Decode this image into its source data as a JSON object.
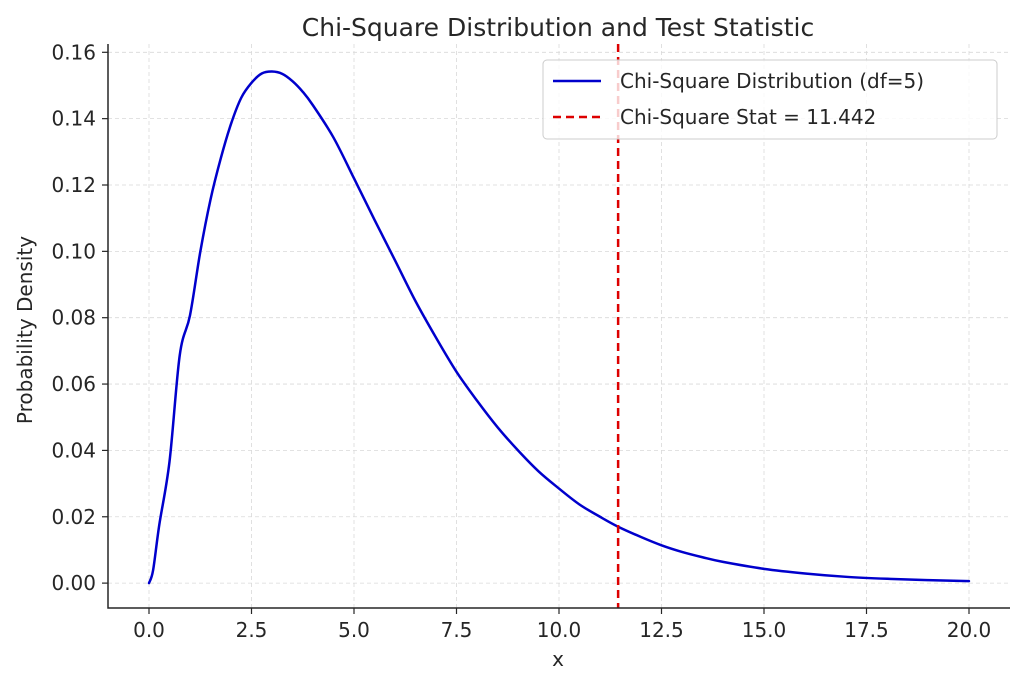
{
  "chart_data": {
    "type": "line",
    "title": "Chi-Square Distribution and Test Statistic",
    "xlabel": "x",
    "ylabel": "Probability Density",
    "xlim": [
      -1.0,
      21.0
    ],
    "ylim": [
      -0.0075,
      0.1625
    ],
    "xticks": [
      0.0,
      2.5,
      5.0,
      7.5,
      10.0,
      12.5,
      15.0,
      17.5,
      20.0
    ],
    "xtick_labels": [
      "0.0",
      "2.5",
      "5.0",
      "7.5",
      "10.0",
      "12.5",
      "15.0",
      "17.5",
      "20.0"
    ],
    "yticks": [
      0.0,
      0.02,
      0.04,
      0.06,
      0.08,
      0.1,
      0.12,
      0.14,
      0.16
    ],
    "ytick_labels": [
      "0.00",
      "0.02",
      "0.04",
      "0.06",
      "0.08",
      "0.10",
      "0.12",
      "0.14",
      "0.16"
    ],
    "grid": true,
    "legend": {
      "placement": "top-right"
    },
    "series": [
      {
        "name": "Chi-Square Distribution (df=5)",
        "color": "#0000cc",
        "style": "solid",
        "x": [
          0.0,
          0.1,
          0.25,
          0.5,
          0.75,
          1.0,
          1.25,
          1.5,
          1.75,
          2.0,
          2.25,
          2.5,
          2.75,
          3.0,
          3.25,
          3.5,
          3.75,
          4.0,
          4.5,
          5.0,
          5.5,
          6.0,
          6.5,
          7.0,
          7.5,
          8.0,
          8.5,
          9.0,
          9.5,
          10.0,
          10.5,
          11.0,
          11.442,
          12.0,
          12.5,
          13.0,
          13.5,
          14.0,
          15.0,
          16.0,
          17.0,
          18.0,
          19.0,
          20.0
        ],
        "y": [
          0.0,
          0.0039,
          0.0175,
          0.0366,
          0.0687,
          0.0807,
          0.0998,
          0.1156,
          0.128,
          0.1384,
          0.1463,
          0.1508,
          0.1536,
          0.1542,
          0.1535,
          0.1513,
          0.1481,
          0.144,
          0.1343,
          0.122,
          0.1095,
          0.0973,
          0.085,
          0.074,
          0.0637,
          0.055,
          0.047,
          0.04,
          0.0337,
          0.0285,
          0.0237,
          0.02,
          0.017,
          0.0139,
          0.0114,
          0.0094,
          0.0078,
          0.0064,
          0.0043,
          0.0029,
          0.0019,
          0.0013,
          0.0009,
          0.0006
        ]
      },
      {
        "name": "Chi-Square Stat = 11.442",
        "color": "#dd0000",
        "style": "dashed",
        "vertical_line_x": 11.442
      }
    ]
  }
}
